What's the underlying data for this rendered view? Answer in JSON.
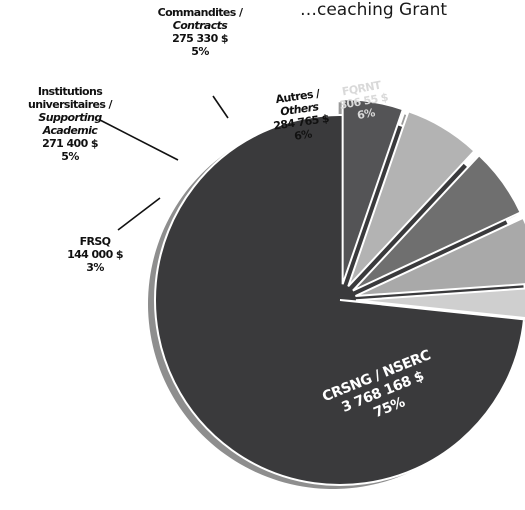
{
  "header": {
    "caption_fragment": "…ceaching Grant"
  },
  "chart_data": {
    "type": "pie",
    "total_label": "",
    "slices": [
      {
        "key": "crsng",
        "name_lines": [
          "CRSNG / NSERC"
        ],
        "amount": "3 768 168 $",
        "percent_label": "75%",
        "percent": 75,
        "color": "#3a3a3c",
        "text_color": "#ffffff"
      },
      {
        "key": "frsq",
        "name_lines": [
          "FRSQ"
        ],
        "amount": "144 000 $",
        "percent_label": "3%",
        "percent": 3,
        "color": "#cfcfcf",
        "text_color": "#111111"
      },
      {
        "key": "inst",
        "name_lines": [
          "Institutions",
          "universitaires /",
          "Supporting",
          "Academic"
        ],
        "italic_lines": [
          2,
          3
        ],
        "amount": "271 400 $",
        "percent_label": "5%",
        "percent": 5,
        "color": "#a9a9a9",
        "text_color": "#111111"
      },
      {
        "key": "comm",
        "name_lines": [
          "Commandites /",
          "Contracts"
        ],
        "italic_lines": [
          1
        ],
        "amount": "275 330 $",
        "percent_label": "5%",
        "percent": 5,
        "color": "#6f6f6f",
        "text_color": "#111111"
      },
      {
        "key": "autres",
        "name_lines": [
          "Autres /",
          "Others"
        ],
        "italic_lines": [
          1
        ],
        "amount": "284 765 $",
        "percent_label": "6%",
        "percent": 6,
        "color": "#b3b3b3",
        "text_color": "#111111"
      },
      {
        "key": "fqrnt",
        "name_lines": [
          "FQRNT"
        ],
        "amount": "306 55 $",
        "percent_label": "6%",
        "percent": 6,
        "color": "#545456",
        "text_color": "#d9d9d9"
      }
    ]
  }
}
